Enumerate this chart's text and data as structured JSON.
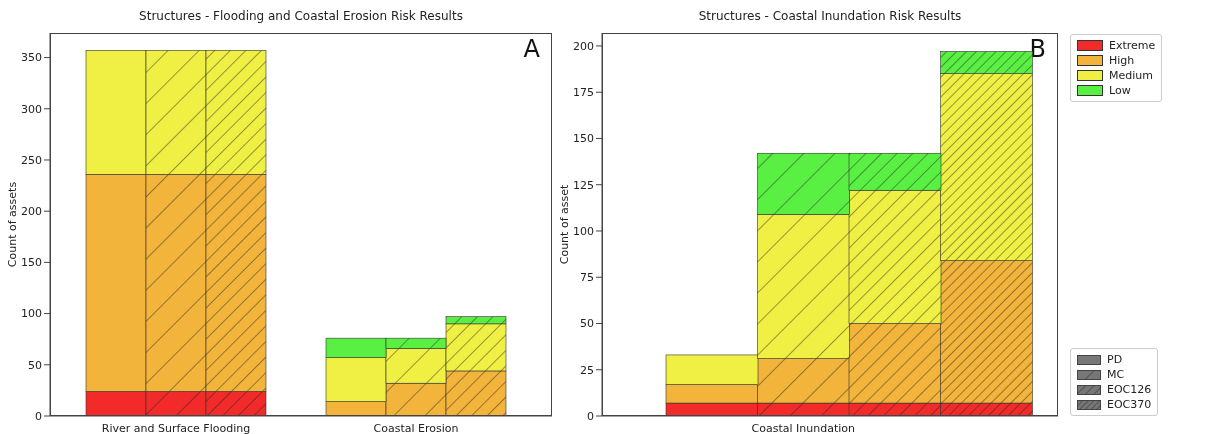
{
  "chart_data": [
    {
      "type": "bar",
      "title": "Structures - Flooding and Coastal Erosion Risk Results",
      "ylabel": "Count of assets",
      "stacked": true,
      "categories": [
        null,
        "River and Surface Flooding",
        null,
        null,
        null,
        "Coastal Erosion",
        null
      ],
      "series": [
        {
          "color": "#f22a2a",
          "values": [
            24,
            24,
            24,
            null,
            0,
            0,
            0
          ]
        },
        {
          "color": "#f2b43a",
          "values": [
            212,
            212,
            212,
            null,
            14,
            32,
            44
          ]
        },
        {
          "color": "#f0ef43",
          "values": [
            121,
            121,
            121,
            null,
            43,
            34,
            46
          ]
        },
        {
          "color": "#5af043",
          "values": [
            0,
            0,
            0,
            null,
            19,
            10,
            7
          ]
        }
      ],
      "ylim": [
        0,
        374
      ],
      "yticks": [
        0,
        50,
        100,
        150,
        200,
        250,
        300,
        350
      ],
      "annotations": [
        "A"
      ]
    },
    {
      "type": "bar",
      "title": "Structures - Coastal Inundation Risk Results",
      "ylabel": "Count of asset",
      "stacked": true,
      "categories": [
        null,
        "Coastal Inundation",
        null,
        null
      ],
      "series": [
        {
          "name": "Extreme",
          "color": "#f22a2a",
          "values": [
            7,
            7,
            7,
            7
          ]
        },
        {
          "name": "High",
          "color": "#f2b43a",
          "values": [
            10,
            24,
            43,
            77
          ]
        },
        {
          "name": "Medium",
          "color": "#f0ef43",
          "values": [
            16,
            78,
            72,
            101
          ]
        },
        {
          "name": "Low",
          "color": "#5af043",
          "values": [
            0,
            33,
            20,
            12
          ]
        }
      ],
      "ylim": [
        0,
        207
      ],
      "yticks": [
        0,
        25,
        50,
        75,
        100,
        125,
        150,
        175,
        200
      ],
      "legend": "top right",
      "annotations": [
        "B",
        "PD",
        "MC",
        "EOC126",
        "EOC370"
      ]
    }
  ]
}
